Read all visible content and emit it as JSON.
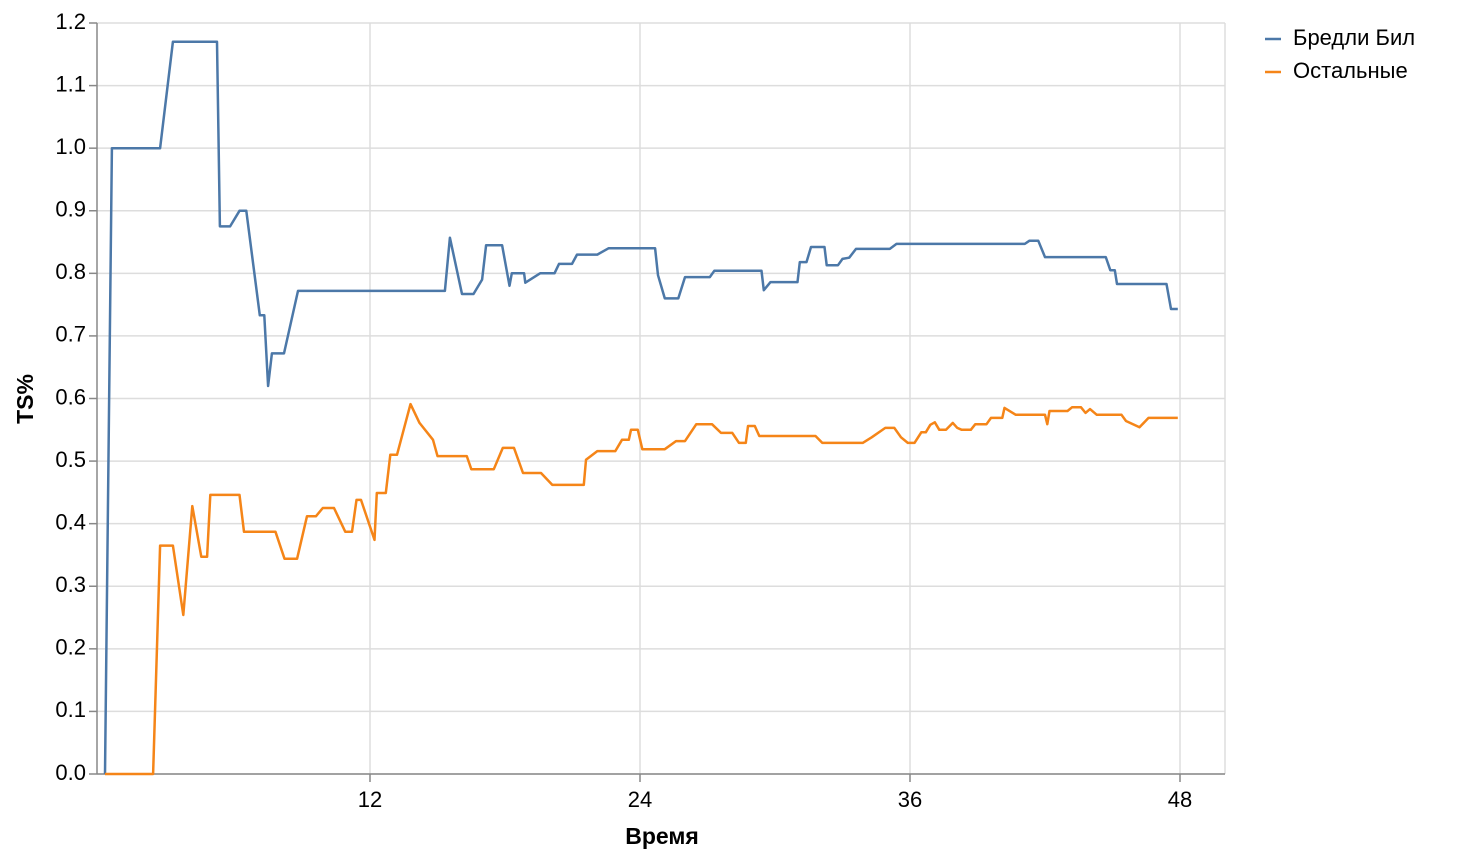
{
  "chart_data": {
    "type": "line",
    "x_label": "Время",
    "y_label": "TS%",
    "xlim": [
      0,
      50
    ],
    "xticks": [
      12,
      24,
      36,
      48
    ],
    "ylim": [
      0,
      1.2
    ],
    "yticks": [
      {
        "value": 0,
        "label": "0.0"
      },
      0.1,
      0.2,
      0.3,
      0.4,
      0.5,
      0.6,
      0.7,
      0.8,
      0.9,
      {
        "value": 1,
        "label": "1.0"
      },
      1.1,
      1.2
    ],
    "grid": true,
    "legend": "top-right",
    "series": [
      {
        "name": "Бредли Бил",
        "color": "#4c78a8",
        "x": [
          0.22,
          0.53,
          2.67,
          3.24,
          5.2,
          5.33,
          5.78,
          6.2,
          6.5,
          7.1,
          7.3,
          7.47,
          7.64,
          8.18,
          8.8,
          15.33,
          15.55,
          16.09,
          16.6,
          16.98,
          17.16,
          17.87,
          18.2,
          18.3,
          18.85,
          18.9,
          19.56,
          20.2,
          20.4,
          20.98,
          21.2,
          22.1,
          22.6,
          24.67,
          24.8,
          25.1,
          25.7,
          26.0,
          27.1,
          27.3,
          29.4,
          29.5,
          29.8,
          31.0,
          31.1,
          31.4,
          31.6,
          32.2,
          32.3,
          32.8,
          33.0,
          33.3,
          33.6,
          35.1,
          35.4,
          41.1,
          41.3,
          41.7,
          42.0,
          44.7,
          44.9,
          45.1,
          45.2,
          47.4,
          47.6,
          47.9
        ],
        "values": [
          0,
          1.0,
          1.0,
          1.17,
          1.17,
          0.875,
          0.875,
          0.9,
          0.9,
          0.733,
          0.733,
          0.62,
          0.672,
          0.672,
          0.772,
          0.772,
          0.857,
          0.767,
          0.767,
          0.79,
          0.845,
          0.845,
          0.78,
          0.8,
          0.8,
          0.785,
          0.8,
          0.8,
          0.815,
          0.815,
          0.83,
          0.83,
          0.84,
          0.84,
          0.797,
          0.76,
          0.76,
          0.794,
          0.794,
          0.804,
          0.804,
          0.773,
          0.786,
          0.786,
          0.818,
          0.818,
          0.842,
          0.842,
          0.813,
          0.813,
          0.823,
          0.825,
          0.839,
          0.839,
          0.847,
          0.847,
          0.852,
          0.852,
          0.826,
          0.826,
          0.805,
          0.805,
          0.783,
          0.783,
          0.743,
          0.743
        ]
      },
      {
        "name": "Остальные",
        "color": "#f58518",
        "x": [
          0.22,
          2.36,
          2.67,
          3.24,
          3.7,
          4.1,
          4.5,
          4.76,
          4.9,
          6.2,
          6.4,
          7.8,
          8.2,
          8.76,
          9.2,
          9.6,
          9.9,
          10.4,
          10.9,
          11.2,
          11.4,
          11.6,
          12.2,
          12.3,
          12.7,
          12.9,
          13.2,
          13.8,
          14.2,
          14.8,
          15.0,
          16.3,
          16.5,
          17.5,
          17.9,
          18.4,
          18.8,
          19.6,
          20.1,
          21.5,
          21.6,
          22.1,
          22.9,
          23.2,
          23.5,
          23.6,
          23.9,
          24.1,
          25.1,
          25.6,
          26.0,
          26.5,
          27.2,
          27.6,
          28.1,
          28.4,
          28.7,
          28.8,
          29.1,
          29.3,
          31.8,
          32.1,
          33.9,
          34.3,
          34.9,
          35.3,
          35.6,
          35.9,
          36.2,
          36.5,
          36.7,
          36.9,
          37.1,
          37.3,
          37.6,
          37.9,
          38.1,
          38.3,
          38.7,
          38.9,
          39.4,
          39.6,
          40.1,
          40.2,
          40.7,
          42.0,
          42.1,
          42.2,
          43.0,
          43.2,
          43.6,
          43.8,
          44.0,
          44.3,
          45.4,
          45.6,
          46.2,
          46.6,
          47.9
        ],
        "values": [
          0,
          0,
          0.365,
          0.365,
          0.254,
          0.428,
          0.347,
          0.347,
          0.446,
          0.446,
          0.387,
          0.387,
          0.344,
          0.344,
          0.412,
          0.412,
          0.425,
          0.425,
          0.387,
          0.387,
          0.438,
          0.438,
          0.374,
          0.449,
          0.449,
          0.51,
          0.51,
          0.591,
          0.561,
          0.534,
          0.508,
          0.508,
          0.487,
          0.487,
          0.521,
          0.521,
          0.481,
          0.481,
          0.462,
          0.462,
          0.502,
          0.516,
          0.516,
          0.534,
          0.534,
          0.55,
          0.55,
          0.519,
          0.519,
          0.532,
          0.532,
          0.559,
          0.559,
          0.545,
          0.545,
          0.529,
          0.529,
          0.556,
          0.556,
          0.54,
          0.54,
          0.529,
          0.529,
          0.538,
          0.553,
          0.553,
          0.538,
          0.529,
          0.529,
          0.546,
          0.546,
          0.558,
          0.562,
          0.55,
          0.55,
          0.561,
          0.553,
          0.55,
          0.55,
          0.559,
          0.559,
          0.569,
          0.569,
          0.585,
          0.574,
          0.574,
          0.559,
          0.58,
          0.58,
          0.586,
          0.586,
          0.577,
          0.583,
          0.574,
          0.574,
          0.564,
          0.554,
          0.569,
          0.569
        ]
      }
    ]
  }
}
